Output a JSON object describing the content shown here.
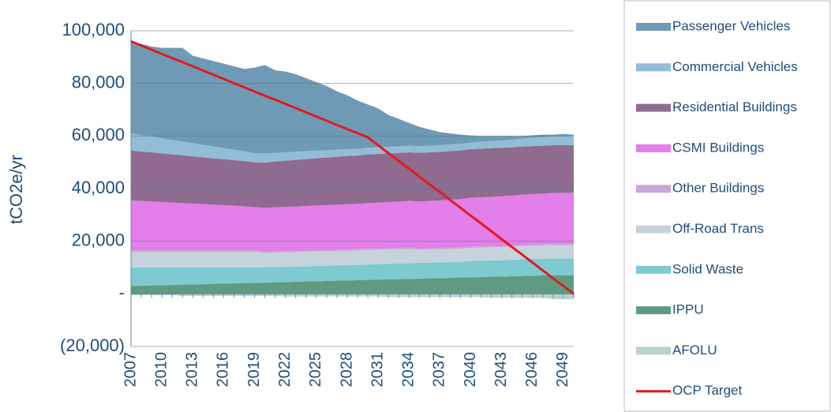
{
  "chart_data": {
    "type": "area",
    "stacked": true,
    "ylabel": "tCO2e/yr",
    "x": [
      2007,
      2008,
      2009,
      2010,
      2011,
      2012,
      2013,
      2014,
      2015,
      2016,
      2017,
      2018,
      2019,
      2020,
      2021,
      2022,
      2023,
      2024,
      2025,
      2026,
      2027,
      2028,
      2029,
      2030,
      2031,
      2032,
      2033,
      2034,
      2035,
      2036,
      2037,
      2038,
      2039,
      2040,
      2041,
      2042,
      2043,
      2044,
      2045,
      2046,
      2047,
      2048,
      2049,
      2050
    ],
    "xlim": [
      2007,
      2050
    ],
    "xticks": [
      2007,
      2010,
      2013,
      2016,
      2019,
      2022,
      2025,
      2028,
      2031,
      2034,
      2037,
      2040,
      2043,
      2046,
      2049
    ],
    "ylim": [
      -20000,
      100000
    ],
    "yticks": [
      {
        "value": -20000,
        "label": "(20,000)"
      },
      {
        "value": 0,
        "label": "-"
      },
      {
        "value": 20000,
        "label": "20,000"
      },
      {
        "value": 40000,
        "label": "40,000"
      },
      {
        "value": 60000,
        "label": "60,000"
      },
      {
        "value": 80000,
        "label": "80,000"
      },
      {
        "value": 100000,
        "label": "100,000"
      }
    ],
    "grid": true,
    "legend": "right",
    "series": [
      {
        "name": "Passenger Vehicles",
        "color": "#6f9ab5",
        "values": [
          35000,
          34700,
          34200,
          34400,
          35000,
          35600,
          33200,
          32900,
          32500,
          32100,
          31700,
          31300,
          32500,
          33700,
          31400,
          30700,
          29500,
          27800,
          26000,
          24400,
          22200,
          20500,
          18400,
          16500,
          14800,
          12100,
          10400,
          8700,
          7400,
          6200,
          5000,
          4200,
          3500,
          2700,
          2200,
          1900,
          1700,
          1400,
          1000,
          1000,
          1000,
          700,
          900,
          500
        ]
      },
      {
        "name": "Commercial Vehicles",
        "color": "#93bcd6",
        "values": [
          6500,
          6200,
          6000,
          5700,
          5500,
          5200,
          5000,
          4700,
          4500,
          4200,
          4000,
          3700,
          3500,
          3400,
          3300,
          3200,
          3100,
          3000,
          2900,
          2800,
          2700,
          2600,
          2500,
          2500,
          2500,
          2500,
          2500,
          2500,
          2500,
          2500,
          2500,
          2500,
          2500,
          2500,
          2600,
          2700,
          2800,
          2900,
          3000,
          3100,
          3200,
          3300,
          3400,
          3500
        ]
      },
      {
        "name": "Residential Buildings",
        "color": "#8e6b8f",
        "values": [
          19000,
          18800,
          18700,
          18500,
          18300,
          18200,
          18000,
          17800,
          17600,
          17500,
          17300,
          17200,
          17000,
          17200,
          17400,
          17500,
          17700,
          17800,
          18000,
          18100,
          18200,
          18300,
          18400,
          18500,
          18500,
          18500,
          18500,
          18500,
          18500,
          18500,
          18500,
          18500,
          18500,
          18500,
          18500,
          18500,
          18400,
          18400,
          18300,
          18300,
          18200,
          18200,
          18100,
          18000
        ]
      },
      {
        "name": "CSMI Buildings",
        "color": "#e47ee8",
        "values": [
          19000,
          18800,
          18600,
          18400,
          18200,
          18000,
          17800,
          17600,
          17400,
          17200,
          17000,
          16800,
          16500,
          16600,
          16700,
          16800,
          16800,
          16900,
          17000,
          17000,
          17100,
          17200,
          17200,
          17300,
          17400,
          17500,
          17600,
          17700,
          17800,
          17900,
          18000,
          18200,
          18300,
          18500,
          18600,
          18700,
          18800,
          18900,
          19000,
          19100,
          19200,
          19300,
          19400,
          19500
        ]
      },
      {
        "name": "Other Buildings",
        "color": "#c9a6d3",
        "values": [
          500,
          500,
          500,
          500,
          500,
          500,
          500,
          500,
          500,
          500,
          500,
          500,
          500,
          500,
          500,
          500,
          500,
          500,
          500,
          500,
          500,
          500,
          500,
          500,
          500,
          500,
          500,
          500,
          500,
          500,
          500,
          500,
          500,
          500,
          500,
          500,
          500,
          500,
          500,
          500,
          500,
          500,
          500,
          500
        ]
      },
      {
        "name": "Off-Road Trans",
        "color": "#c5d3dd",
        "values": [
          6000,
          6000,
          6000,
          6000,
          6000,
          6000,
          6000,
          6000,
          6000,
          6000,
          6000,
          6000,
          6000,
          5500,
          5500,
          5500,
          5500,
          5500,
          5500,
          5500,
          5500,
          5500,
          5500,
          5500,
          5500,
          5500,
          5500,
          5500,
          5000,
          5000,
          5000,
          5000,
          5000,
          5000,
          5000,
          5000,
          5000,
          5000,
          5000,
          5000,
          5000,
          5000,
          5000,
          5000
        ]
      },
      {
        "name": "Solid Waste",
        "color": "#7ecad0",
        "values": [
          7000,
          6900,
          6800,
          6700,
          6600,
          6500,
          6400,
          6300,
          6200,
          6100,
          6000,
          5900,
          5800,
          5800,
          5800,
          5800,
          5800,
          5800,
          5800,
          5800,
          5800,
          5800,
          5800,
          5900,
          5900,
          5900,
          5900,
          5900,
          6000,
          6000,
          6000,
          6000,
          6000,
          6200,
          6200,
          6200,
          6200,
          6200,
          6400,
          6400,
          6400,
          6500,
          6500,
          6500
        ]
      },
      {
        "name": "IPPU",
        "color": "#5f9a82",
        "values": [
          3000,
          3100,
          3200,
          3300,
          3400,
          3500,
          3600,
          3700,
          3800,
          3900,
          4000,
          4100,
          4200,
          4300,
          4400,
          4500,
          4600,
          4700,
          4800,
          4900,
          5000,
          5100,
          5200,
          5300,
          5400,
          5500,
          5600,
          5700,
          5800,
          5900,
          6000,
          6100,
          6200,
          6300,
          6400,
          6500,
          6600,
          6700,
          6800,
          6900,
          7000,
          7000,
          7000,
          7000
        ]
      },
      {
        "name": "AFOLU",
        "color": "#b8d4c8",
        "values": [
          -500,
          -500,
          -500,
          -500,
          -500,
          -800,
          -800,
          -800,
          -800,
          -800,
          -800,
          -800,
          -800,
          -800,
          -800,
          -1000,
          -1000,
          -1000,
          -1000,
          -1000,
          -1000,
          -1000,
          -1000,
          -1000,
          -1000,
          -1200,
          -1200,
          -1200,
          -1200,
          -1200,
          -1200,
          -1200,
          -1200,
          -1200,
          -1200,
          -1500,
          -1500,
          -1500,
          -1500,
          -1500,
          -1500,
          -2000,
          -2000,
          -2000
        ]
      },
      {
        "name": "OCP Target",
        "color": "#e31a1c",
        "type": "line",
        "values": [
          96000,
          94400,
          92800,
          91200,
          89600,
          88100,
          86500,
          84900,
          83300,
          81700,
          80100,
          78500,
          76900,
          75300,
          73800,
          72200,
          70600,
          69000,
          67400,
          65800,
          64200,
          62600,
          61100,
          59500,
          56500,
          53500,
          50600,
          47600,
          44600,
          41600,
          38700,
          35700,
          32700,
          29700,
          26800,
          23800,
          20800,
          17800,
          14900,
          11900,
          8900,
          5900,
          3000,
          0
        ]
      }
    ]
  }
}
